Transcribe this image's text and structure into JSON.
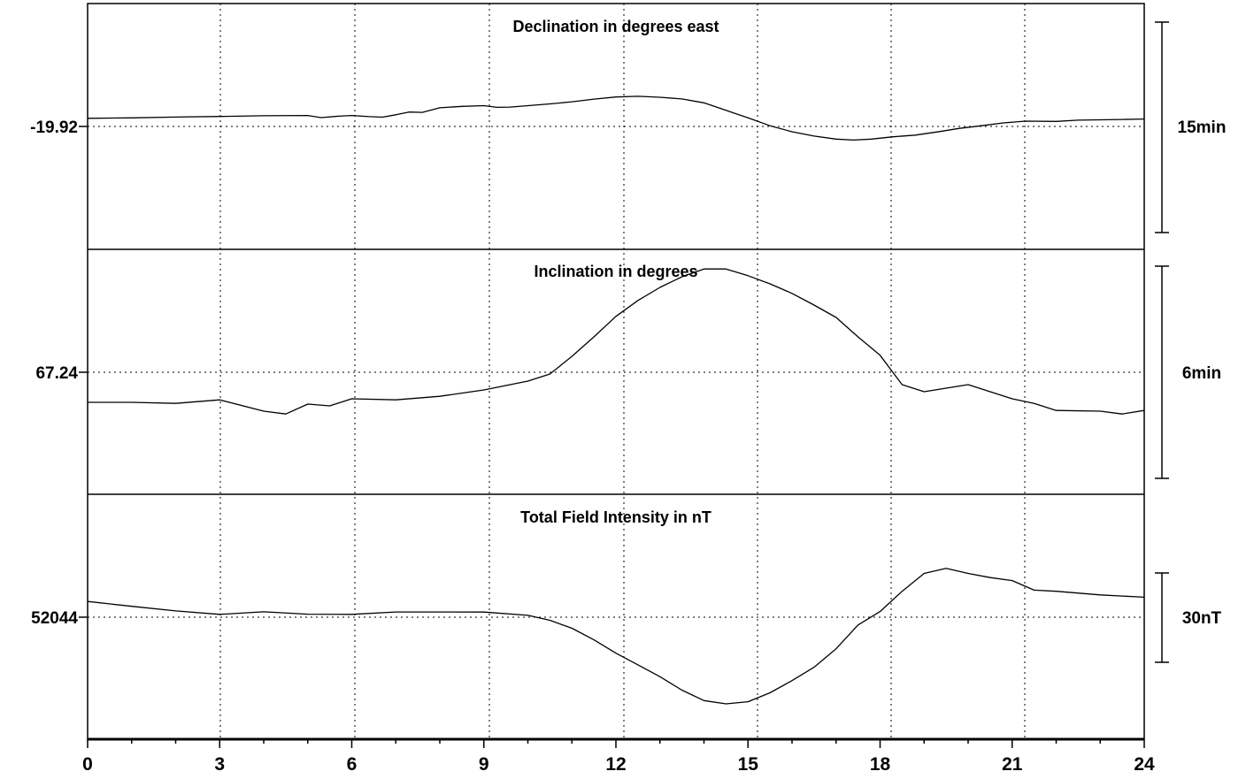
{
  "chart_data": {
    "type": "line",
    "xlim": [
      0,
      24
    ],
    "x_ticks": [
      "0",
      "3",
      "6",
      "9",
      "12",
      "15",
      "18",
      "21",
      "24"
    ],
    "colors": {
      "line": "#000000",
      "grid": "#000000",
      "background": "#ffffff"
    },
    "grid": "dotted, vertical at approximately 3, 6.1, 9.1, 12.2, 15.2, 18.2, 21.2 hours plus one horizontal line per panel",
    "panels": [
      {
        "title": "Declination in degrees east",
        "baseline_label": "-19.92",
        "scale_label": "15min",
        "scale_bar_span": 15,
        "scale_unit": "arcmin",
        "baseline_offset_in_scale_units": 0.18,
        "series": [
          {
            "values": [
              [
                0,
                0.4
              ],
              [
                1,
                0.43
              ],
              [
                2,
                0.49
              ],
              [
                3,
                0.53
              ],
              [
                4,
                0.58
              ],
              [
                5,
                0.6
              ],
              [
                5.3,
                0.45
              ],
              [
                5.7,
                0.55
              ],
              [
                6.0,
                0.6
              ],
              [
                6.4,
                0.52
              ],
              [
                6.7,
                0.48
              ],
              [
                7.0,
                0.65
              ],
              [
                7.3,
                0.85
              ],
              [
                7.6,
                0.82
              ],
              [
                8.0,
                1.15
              ],
              [
                8.5,
                1.25
              ],
              [
                9.0,
                1.3
              ],
              [
                9.3,
                1.18
              ],
              [
                9.6,
                1.2
              ],
              [
                10,
                1.3
              ],
              [
                10.5,
                1.43
              ],
              [
                11,
                1.58
              ],
              [
                11.5,
                1.77
              ],
              [
                12,
                1.92
              ],
              [
                12.5,
                1.97
              ],
              [
                13,
                1.9
              ],
              [
                13.5,
                1.78
              ],
              [
                14,
                1.5
              ],
              [
                14.5,
                0.97
              ],
              [
                15,
                0.43
              ],
              [
                15.5,
                -0.13
              ],
              [
                16,
                -0.56
              ],
              [
                16.5,
                -0.87
              ],
              [
                17,
                -1.08
              ],
              [
                17.4,
                -1.15
              ],
              [
                17.8,
                -1.08
              ],
              [
                18.3,
                -0.92
              ],
              [
                18.8,
                -0.8
              ],
              [
                19.3,
                -0.57
              ],
              [
                19.8,
                -0.32
              ],
              [
                20.3,
                -0.13
              ],
              [
                20.8,
                0.07
              ],
              [
                21.3,
                0.2
              ],
              [
                22,
                0.18
              ],
              [
                22.5,
                0.27
              ],
              [
                23.5,
                0.32
              ],
              [
                24,
                0.35
              ]
            ]
          }
        ]
      },
      {
        "title": "Inclination in degrees",
        "baseline_label": "67.24",
        "scale_label": "6min",
        "scale_bar_span": 6,
        "scale_unit": "arcmin",
        "baseline_offset_in_scale_units": 0.1,
        "series": [
          {
            "values": [
              [
                0,
                -0.95
              ],
              [
                1,
                -0.95
              ],
              [
                2,
                -0.98
              ],
              [
                3,
                -0.88
              ],
              [
                4,
                -1.2
              ],
              [
                4.5,
                -1.28
              ],
              [
                5,
                -1.0
              ],
              [
                5.5,
                -1.05
              ],
              [
                6,
                -0.85
              ],
              [
                7,
                -0.88
              ],
              [
                8,
                -0.78
              ],
              [
                9,
                -0.6
              ],
              [
                10,
                -0.35
              ],
              [
                10.5,
                -0.15
              ],
              [
                11,
                0.35
              ],
              [
                11.5,
                0.9
              ],
              [
                12,
                1.48
              ],
              [
                12.5,
                1.93
              ],
              [
                13,
                2.3
              ],
              [
                13.5,
                2.6
              ],
              [
                14,
                2.82
              ],
              [
                14.5,
                2.82
              ],
              [
                15,
                2.63
              ],
              [
                15.5,
                2.4
              ],
              [
                16,
                2.13
              ],
              [
                16.5,
                1.8
              ],
              [
                17,
                1.45
              ],
              [
                17.5,
                0.9
              ],
              [
                18,
                0.38
              ],
              [
                18.5,
                -0.45
              ],
              [
                19,
                -0.65
              ],
              [
                19.5,
                -0.55
              ],
              [
                20,
                -0.45
              ],
              [
                20.5,
                -0.65
              ],
              [
                21,
                -0.85
              ],
              [
                21.5,
                -0.98
              ],
              [
                22,
                -1.18
              ],
              [
                23,
                -1.2
              ],
              [
                23.5,
                -1.28
              ],
              [
                24,
                -1.18
              ]
            ]
          }
        ]
      },
      {
        "title": "Total Field Intensity in nT",
        "baseline_label": "52044",
        "scale_label": "30nT",
        "scale_bar_span": 30,
        "scale_unit": "nT",
        "baseline_offset_in_scale_units": 0.5,
        "series": [
          {
            "values": [
              [
                0,
                4.8
              ],
              [
                1,
                3.14
              ],
              [
                2,
                1.62
              ],
              [
                3,
                0.46
              ],
              [
                4,
                1.3
              ],
              [
                5,
                0.52
              ],
              [
                6,
                0.46
              ],
              [
                7,
                1.26
              ],
              [
                8,
                1.26
              ],
              [
                9,
                1.22
              ],
              [
                10,
                0.12
              ],
              [
                10.5,
                -1.55
              ],
              [
                11,
                -4.2
              ],
              [
                11.5,
                -8.1
              ],
              [
                12,
                -12.6
              ],
              [
                12.5,
                -16.5
              ],
              [
                13,
                -20.5
              ],
              [
                13.5,
                -25.0
              ],
              [
                14,
                -28.5
              ],
              [
                14.5,
                -29.6
              ],
              [
                15,
                -28.9
              ],
              [
                15.5,
                -25.9
              ],
              [
                16,
                -21.8
              ],
              [
                16.5,
                -17.3
              ],
              [
                17,
                -11.1
              ],
              [
                17.5,
                -3.1
              ],
              [
                18,
                1.4
              ],
              [
                18.5,
                8.2
              ],
              [
                19,
                14.2
              ],
              [
                19.5,
                15.9
              ],
              [
                20,
                14.2
              ],
              [
                20.5,
                12.8
              ],
              [
                21,
                11.8
              ],
              [
                21.5,
                8.6
              ],
              [
                22,
                8.2
              ],
              [
                23,
                7.0
              ],
              [
                24,
                6.2
              ]
            ]
          }
        ]
      }
    ]
  }
}
